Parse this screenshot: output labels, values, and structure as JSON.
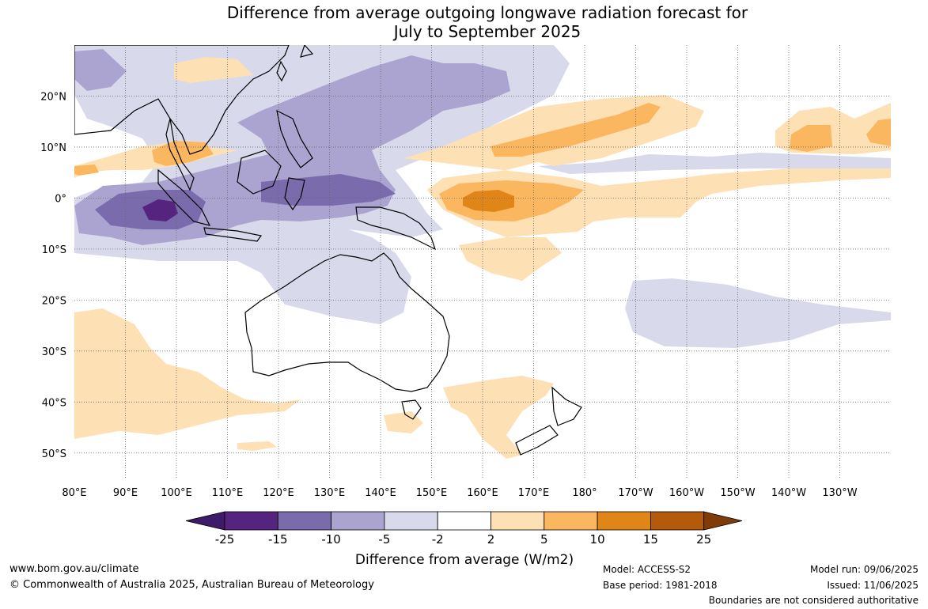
{
  "title_line1": "Difference from average outgoing longwave radiation forecast for",
  "title_line2": "July to September 2025",
  "map": {
    "lon_labels": [
      "80°E",
      "90°E",
      "100°E",
      "110°E",
      "120°E",
      "130°E",
      "140°E",
      "150°E",
      "160°E",
      "170°E",
      "180°",
      "170°W",
      "160°W",
      "150°W",
      "140°W",
      "130°W"
    ],
    "lat_labels": [
      "20°N",
      "10°N",
      "0°",
      "10°S",
      "20°S",
      "30°S",
      "40°S",
      "50°S"
    ],
    "lat_values": [
      20,
      10,
      0,
      -10,
      -20,
      -30,
      -40,
      -50
    ],
    "lon_values": [
      80,
      90,
      100,
      110,
      120,
      130,
      140,
      150,
      160,
      170,
      180,
      190,
      200,
      210,
      220,
      230
    ],
    "extent": {
      "lon_min": 80,
      "lon_max": 240,
      "lat_min": -55,
      "lat_max": 30
    }
  },
  "colorbar": {
    "ticks": [
      "-25",
      "-15",
      "-10",
      "-5",
      "-2",
      "2",
      "5",
      "10",
      "15",
      "25"
    ],
    "colors": [
      "#3e1a6b",
      "#55247f",
      "#7a6bad",
      "#aba3d0",
      "#d9d9ec",
      "#ffffff",
      "#fde0b4",
      "#fbb760",
      "#e08618",
      "#b35a0b",
      "#7f3b08"
    ],
    "label": "Difference from average (W/m2)"
  },
  "footer": {
    "url": "www.bom.gov.au/climate",
    "copyright": "© Commonwealth of Australia 2025, Australian Bureau of Meteorology",
    "model": "Model: ACCESS-S2",
    "base_period": "Base period: 1981-2018",
    "model_run": "Model run: 09/06/2025",
    "issued": "Issued: 11/06/2025",
    "disclaimer": "Boundaries are not considered authoritative"
  }
}
